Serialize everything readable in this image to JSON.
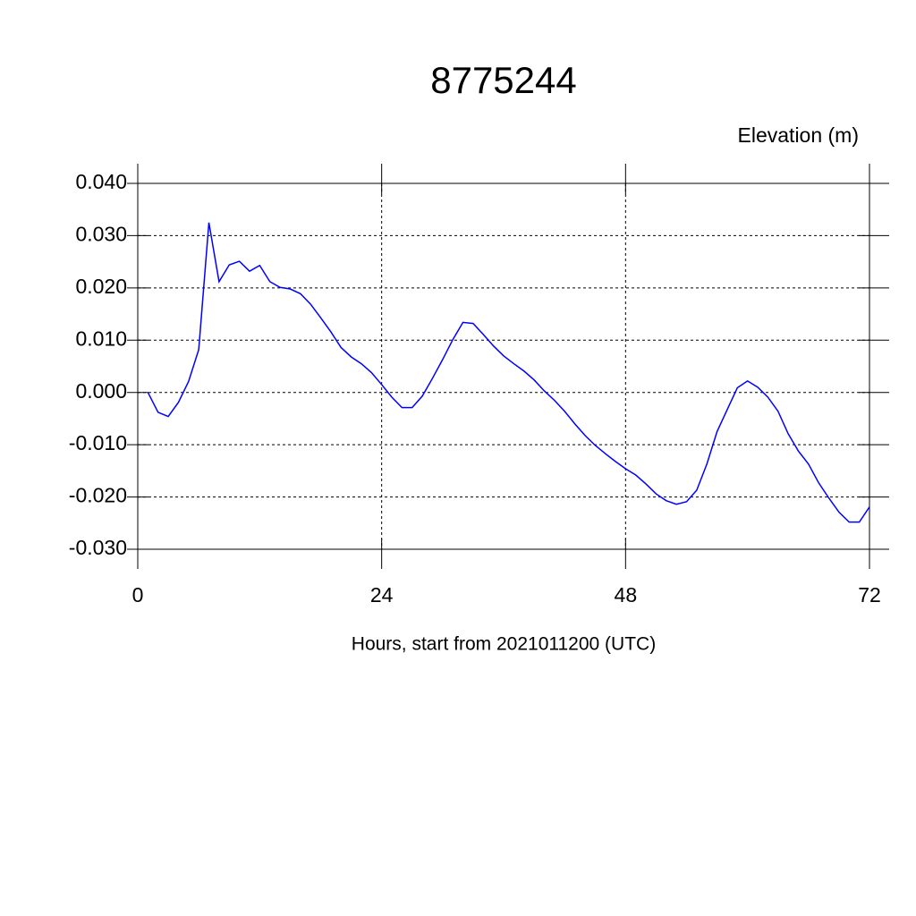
{
  "chart_data": {
    "type": "line",
    "title": "8775244",
    "y_label": "Elevation (m)",
    "x_label": "Hours, start from 2021011200 (UTC)",
    "x": [
      1,
      2,
      3,
      4,
      5,
      6,
      7,
      8,
      9,
      10,
      11,
      12,
      13,
      14,
      15,
      16,
      17,
      18,
      19,
      20,
      21,
      22,
      23,
      24,
      25,
      26,
      27,
      28,
      29,
      30,
      31,
      32,
      33,
      34,
      35,
      36,
      37,
      38,
      39,
      40,
      41,
      42,
      43,
      44,
      45,
      46,
      47,
      48,
      49,
      50,
      51,
      52,
      53,
      54,
      55,
      56,
      57,
      58,
      59,
      60,
      61,
      62,
      63,
      64,
      65,
      66,
      67,
      68,
      69,
      70,
      71,
      72
    ],
    "series": [
      {
        "name": "Elevation",
        "color": "#0000ff",
        "values": [
          0.0,
          -0.0038,
          -0.0046,
          -0.0019,
          0.0021,
          0.0082,
          0.0325,
          0.0212,
          0.0244,
          0.0251,
          0.0232,
          0.0243,
          0.0212,
          0.0201,
          0.0198,
          0.0189,
          0.0169,
          0.0143,
          0.0116,
          0.0086,
          0.0068,
          0.0055,
          0.0038,
          0.0015,
          -0.0009,
          -0.0029,
          -0.0029,
          -0.0007,
          0.0027,
          0.0063,
          0.0101,
          0.0134,
          0.0132,
          0.0111,
          0.0089,
          0.007,
          0.0055,
          0.0041,
          0.0024,
          0.0003,
          -0.0015,
          -0.0036,
          -0.006,
          -0.0082,
          -0.0101,
          -0.0117,
          -0.0132,
          -0.0146,
          -0.0158,
          -0.0175,
          -0.0194,
          -0.0207,
          -0.0214,
          -0.0209,
          -0.0187,
          -0.0137,
          -0.0075,
          -0.0033,
          0.0009,
          0.0022,
          0.001,
          -0.0009,
          -0.0036,
          -0.0079,
          -0.0112,
          -0.0137,
          -0.0173,
          -0.0202,
          -0.0229,
          -0.0248,
          -0.0248,
          -0.0219
        ]
      }
    ],
    "xlim": [
      0,
      72
    ],
    "xticks": [
      0,
      24,
      48,
      72
    ],
    "ylim": [
      -0.03,
      0.04
    ],
    "yticks": [
      {
        "value": -0.03,
        "label": "-0.030"
      },
      {
        "value": -0.02,
        "label": "-0.020"
      },
      {
        "value": -0.01,
        "label": "-0.010"
      },
      {
        "value": 0,
        "label": "0.000"
      },
      {
        "value": 0.01,
        "label": "0.010"
      },
      {
        "value": 0.02,
        "label": "0.020"
      },
      {
        "value": 0.03,
        "label": "0.030"
      },
      {
        "value": 0.04,
        "label": "0.040"
      }
    ],
    "grid": true
  }
}
